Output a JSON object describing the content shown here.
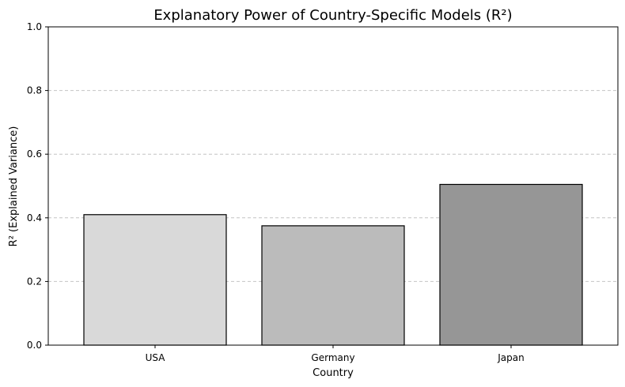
{
  "chart_data": {
    "type": "bar",
    "title": "Explanatory Power of Country-Specific Models (R²)",
    "xlabel": "Country",
    "ylabel": "R² (Explained Variance)",
    "categories": [
      "USA",
      "Germany",
      "Japan"
    ],
    "values": [
      0.41,
      0.375,
      0.505
    ],
    "bar_colors": [
      "#d9d9d9",
      "#bbbbbb",
      "#969696"
    ],
    "ylim": [
      0,
      1.0
    ],
    "yticks": [
      "0.0",
      "0.2",
      "0.4",
      "0.6",
      "0.8",
      "1.0"
    ],
    "ytick_values": [
      0,
      0.2,
      0.4,
      0.6,
      0.8,
      1.0
    ],
    "grid": "y-dashed",
    "legend": "none"
  }
}
